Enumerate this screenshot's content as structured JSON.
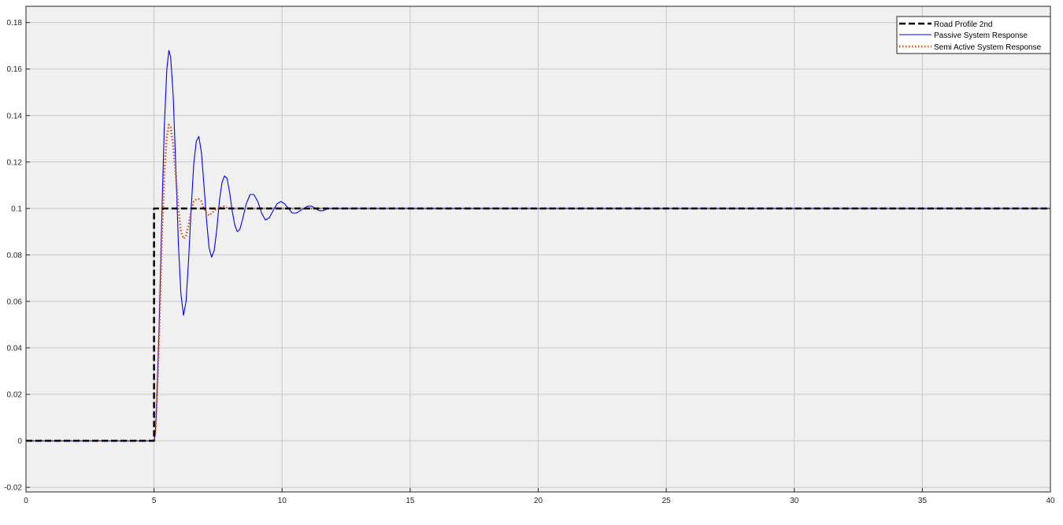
{
  "chart_data": {
    "type": "line",
    "title": "",
    "xlabel": "",
    "ylabel": "",
    "xlim": [
      0,
      40
    ],
    "ylim": [
      -0.022,
      0.187
    ],
    "xticks": [
      0,
      5,
      10,
      15,
      20,
      25,
      30,
      35,
      40
    ],
    "xtick_labels": [
      "0",
      "5",
      "10",
      "15",
      "20",
      "25",
      "30",
      "35",
      "40"
    ],
    "yticks": [
      -0.02,
      0,
      0.02,
      0.04,
      0.06,
      0.08,
      0.1,
      0.12,
      0.14,
      0.16,
      0.18
    ],
    "ytick_labels": [
      "-0.02",
      "0",
      "0.02",
      "0.04",
      "0.06",
      "0.08",
      "0.1",
      "0.12",
      "0.14",
      "0.16",
      "0.18"
    ],
    "grid": true,
    "background": "#f0f0f0",
    "legend_position": "top-right",
    "series": [
      {
        "name": "Road Profile 2nd",
        "color": "#000000",
        "style": "dashed",
        "x": [
          0,
          5,
          5,
          40
        ],
        "y": [
          0,
          0,
          0.1,
          0.1
        ]
      },
      {
        "name": "Passive System Response",
        "color": "#0000ff",
        "style": "solid",
        "x": [
          0,
          5,
          5.05,
          5.1,
          5.2,
          5.3,
          5.4,
          5.5,
          5.58,
          5.65,
          5.75,
          5.85,
          5.95,
          6.05,
          6.15,
          6.25,
          6.35,
          6.45,
          6.55,
          6.65,
          6.75,
          6.85,
          6.95,
          7.05,
          7.15,
          7.25,
          7.35,
          7.45,
          7.55,
          7.65,
          7.75,
          7.85,
          7.95,
          8.05,
          8.15,
          8.25,
          8.35,
          8.45,
          8.6,
          8.75,
          8.9,
          9.05,
          9.2,
          9.35,
          9.5,
          9.65,
          9.8,
          9.95,
          10.1,
          10.25,
          10.4,
          10.55,
          10.7,
          10.85,
          11,
          11.15,
          11.3,
          11.45,
          11.6,
          11.8,
          12,
          12.2,
          12.4,
          12.6,
          12.8,
          13,
          13.5,
          14,
          40
        ],
        "y": [
          0,
          0,
          0.003,
          0.015,
          0.05,
          0.095,
          0.135,
          0.16,
          0.168,
          0.165,
          0.148,
          0.118,
          0.085,
          0.063,
          0.054,
          0.06,
          0.078,
          0.1,
          0.119,
          0.129,
          0.131,
          0.124,
          0.11,
          0.095,
          0.083,
          0.079,
          0.082,
          0.091,
          0.103,
          0.111,
          0.114,
          0.113,
          0.107,
          0.099,
          0.093,
          0.09,
          0.091,
          0.095,
          0.102,
          0.106,
          0.106,
          0.103,
          0.098,
          0.095,
          0.096,
          0.099,
          0.102,
          0.103,
          0.102,
          0.1,
          0.098,
          0.098,
          0.099,
          0.1,
          0.101,
          0.101,
          0.1,
          0.099,
          0.099,
          0.1,
          0.1,
          0.1,
          0.1,
          0.1,
          0.1,
          0.1,
          0.1,
          0.1,
          0.1
        ]
      },
      {
        "name": "Semi Active System Response",
        "color": "#d95319",
        "style": "dotted",
        "x": [
          0,
          5,
          5.05,
          5.1,
          5.2,
          5.3,
          5.4,
          5.5,
          5.58,
          5.65,
          5.75,
          5.85,
          5.95,
          6.05,
          6.15,
          6.25,
          6.35,
          6.45,
          6.55,
          6.65,
          6.75,
          6.85,
          6.95,
          7.05,
          7.15,
          7.25,
          7.35,
          7.45,
          7.55,
          7.7,
          7.9,
          8.1,
          8.3,
          8.6,
          9,
          40
        ],
        "y": [
          0,
          0,
          0.003,
          0.014,
          0.045,
          0.085,
          0.115,
          0.131,
          0.136,
          0.135,
          0.127,
          0.114,
          0.1,
          0.09,
          0.087,
          0.088,
          0.093,
          0.099,
          0.103,
          0.104,
          0.104,
          0.103,
          0.1,
          0.098,
          0.097,
          0.098,
          0.099,
          0.1,
          0.1,
          0.101,
          0.1,
          0.1,
          0.1,
          0.1,
          0.1,
          0.1
        ]
      }
    ]
  }
}
